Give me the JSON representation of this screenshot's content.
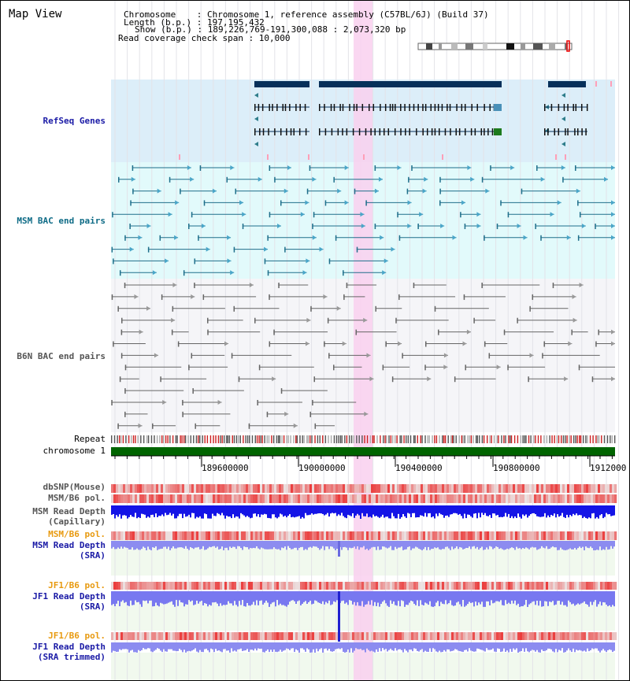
{
  "view": {
    "title": "Map View"
  },
  "info": {
    "chromosome_label": "Chromosome    : Chromosome 1, reference assembly (C57BL/6J) (Build 37)",
    "length_label": "Length (b.p.) : 197,195,432",
    "show_label": "Show (b.p.) : 189,226,769-191,300,088 : 2,073,320 bp",
    "coverage_label": "Read coverage check span : 10,000"
  },
  "tracks": {
    "refseq": "RefSeq Genes",
    "msm_bac": "MSM BAC end pairs",
    "b6n_bac": "B6N BAC end pairs",
    "repeat": "Repeat",
    "chromosome": "chromosome 1",
    "dbsnp": "dbSNP(Mouse)",
    "msm_b6_pol": "MSM/B6 pol.",
    "msm_depth_cap_1": "MSM Read Depth",
    "msm_depth_cap_2": "(Capillary)",
    "msm_b6_pol2": "MSM/B6 pol.",
    "msm_depth_sra_1": "MSM Read Depth",
    "msm_depth_sra_2": "(SRA)",
    "jf1_b6_pol": "JF1/B6 pol.",
    "jf1_depth_1": "JF1 Read Depth",
    "jf1_depth_2": "(SRA)",
    "jf1_b6_pol2": "JF1/B6 pol.",
    "jf1_trim_1": "JF1 Read Depth",
    "jf1_trim_2": "(SRA trimmed)"
  },
  "axis": {
    "ticks": [
      "189600000",
      "190000000",
      "190400000",
      "190800000",
      "1912000"
    ]
  },
  "colors": {
    "refseq_bg": "#dceef9",
    "msm_bg": "#e2fafb",
    "b6n_bg": "#f5f5f8",
    "highlight": "#f9d0ee",
    "gene_dark": "#07305a",
    "chromosome": "#006400",
    "depth_capillary": "#1414e6",
    "depth_sra": "#8c8cf0",
    "depth_jf1": "#7878f0"
  }
}
